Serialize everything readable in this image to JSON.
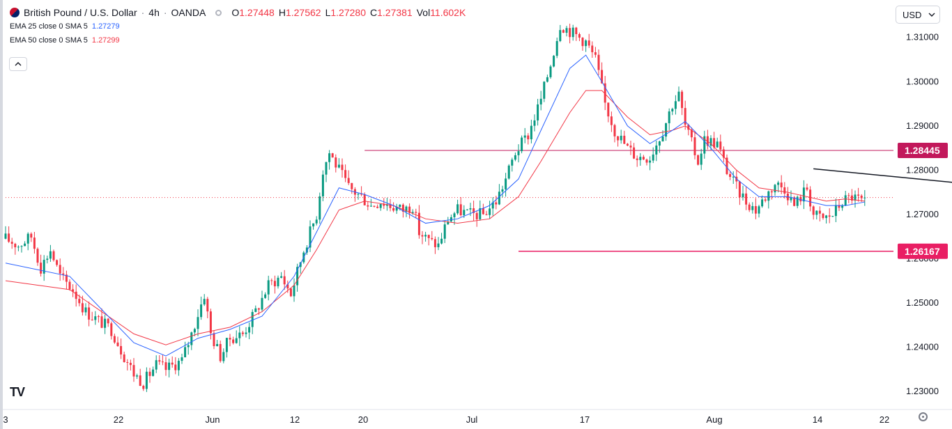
{
  "header": {
    "symbol": "British Pound / U.S. Dollar",
    "interval": "4h",
    "exchange": "OANDA",
    "ohlc": [
      {
        "key": "O",
        "value": "1.27448"
      },
      {
        "key": "H",
        "value": "1.27562"
      },
      {
        "key": "L",
        "value": "1.27280"
      },
      {
        "key": "C",
        "value": "1.27381"
      },
      {
        "key": "Vol",
        "value": "11.602K"
      }
    ],
    "indicators": [
      {
        "label": "EMA 25 close 0 SMA 5",
        "value": "1.27279",
        "color": "#2962ff"
      },
      {
        "label": "EMA 50 close 0 SMA 5",
        "value": "1.27299",
        "color": "#f23645"
      }
    ],
    "collapse_icon": "chevron-up-icon",
    "currency": "USD",
    "currency_icon": "chevron-down-icon",
    "logo": "TV",
    "settings_icon": "gear-icon"
  },
  "chart_data": {
    "type": "candlestick",
    "title": "British Pound / U.S. Dollar · 4h · OANDA",
    "ylim": [
      1.2259,
      1.3172
    ],
    "y_ticks": [
      "1.23000",
      "1.24000",
      "1.25000",
      "1.26000",
      "1.27000",
      "1.28000",
      "1.29000",
      "1.30000",
      "1.31000"
    ],
    "x_ticks": [
      "3",
      "22",
      "Jun",
      "12",
      "20",
      "Jul",
      "17",
      "Aug",
      "14",
      "22"
    ],
    "price_path": [
      [
        0,
        1.2645
      ],
      [
        4,
        1.263
      ],
      [
        8,
        1.265
      ],
      [
        11,
        1.258
      ],
      [
        14,
        1.262
      ],
      [
        17,
        1.256
      ],
      [
        21,
        1.253
      ],
      [
        25,
        1.248
      ],
      [
        29,
        1.246
      ],
      [
        33,
        1.244
      ],
      [
        37,
        1.238
      ],
      [
        40,
        1.234
      ],
      [
        43,
        1.232
      ],
      [
        47,
        1.236
      ],
      [
        50,
        1.235
      ],
      [
        55,
        1.237
      ],
      [
        58,
        1.243
      ],
      [
        62,
        1.252
      ],
      [
        64,
        1.243
      ],
      [
        67,
        1.238
      ],
      [
        70,
        1.242
      ],
      [
        74,
        1.243
      ],
      [
        78,
        1.248
      ],
      [
        82,
        1.254
      ],
      [
        86,
        1.256
      ],
      [
        89,
        1.252
      ],
      [
        93,
        1.262
      ],
      [
        97,
        1.27
      ],
      [
        99,
        1.28
      ],
      [
        101,
        1.284
      ],
      [
        104,
        1.28
      ],
      [
        107,
        1.276
      ],
      [
        111,
        1.274
      ],
      [
        114,
        1.272
      ],
      [
        117,
        1.273
      ],
      [
        120,
        1.272
      ],
      [
        124,
        1.271
      ],
      [
        127,
        1.272
      ],
      [
        129,
        1.266
      ],
      [
        132,
        1.264
      ],
      [
        135,
        1.263
      ],
      [
        138,
        1.269
      ],
      [
        141,
        1.271
      ],
      [
        145,
        1.27
      ],
      [
        149,
        1.27
      ],
      [
        153,
        1.273
      ],
      [
        156,
        1.278
      ],
      [
        159,
        1.284
      ],
      [
        163,
        1.288
      ],
      [
        167,
        1.296
      ],
      [
        170,
        1.304
      ],
      [
        173,
        1.313
      ],
      [
        177,
        1.311
      ],
      [
        181,
        1.309
      ],
      [
        184,
        1.305
      ],
      [
        187,
        1.295
      ],
      [
        190,
        1.289
      ],
      [
        194,
        1.285
      ],
      [
        197,
        1.283
      ],
      [
        201,
        1.283
      ],
      [
        205,
        1.289
      ],
      [
        208,
        1.295
      ],
      [
        210,
        1.297
      ],
      [
        212,
        1.29
      ],
      [
        216,
        1.282
      ],
      [
        218,
        1.287
      ],
      [
        222,
        1.286
      ],
      [
        225,
        1.28
      ],
      [
        228,
        1.276
      ],
      [
        231,
        1.273
      ],
      [
        234,
        1.271
      ],
      [
        237,
        1.274
      ],
      [
        240,
        1.277
      ],
      [
        243,
        1.276
      ],
      [
        246,
        1.272
      ],
      [
        248,
        1.274
      ],
      [
        250,
        1.276
      ],
      [
        252,
        1.27
      ],
      [
        255,
        1.269
      ],
      [
        258,
        1.27
      ],
      [
        261,
        1.273
      ],
      [
        264,
        1.274
      ],
      [
        267,
        1.273
      ],
      [
        268,
        1.2738
      ]
    ],
    "ema_fast": {
      "name": "EMA 25 close 0 SMA 5",
      "values": [
        [
          0,
          1.259
        ],
        [
          20,
          1.256
        ],
        [
          40,
          1.241
        ],
        [
          50,
          1.238
        ],
        [
          60,
          1.242
        ],
        [
          70,
          1.244
        ],
        [
          80,
          1.247
        ],
        [
          90,
          1.256
        ],
        [
          97,
          1.266
        ],
        [
          104,
          1.276
        ],
        [
          112,
          1.2745
        ],
        [
          121,
          1.272
        ],
        [
          131,
          1.268
        ],
        [
          141,
          1.269
        ],
        [
          151,
          1.272
        ],
        [
          160,
          1.278
        ],
        [
          167,
          1.289
        ],
        [
          176,
          1.303
        ],
        [
          181,
          1.306
        ],
        [
          186,
          1.3
        ],
        [
          194,
          1.29
        ],
        [
          201,
          1.286
        ],
        [
          208,
          1.289
        ],
        [
          212,
          1.291
        ],
        [
          220,
          1.285
        ],
        [
          228,
          1.278
        ],
        [
          235,
          1.274
        ],
        [
          244,
          1.274
        ],
        [
          250,
          1.273
        ],
        [
          256,
          1.272
        ],
        [
          262,
          1.272
        ],
        [
          268,
          1.2728
        ]
      ],
      "last": 1.27279,
      "color": "#2962ff"
    },
    "ema_slow": {
      "name": "EMA 50 close 0 SMA 5",
      "values": [
        [
          0,
          1.255
        ],
        [
          20,
          1.253
        ],
        [
          40,
          1.243
        ],
        [
          50,
          1.2405
        ],
        [
          60,
          1.243
        ],
        [
          70,
          1.2445
        ],
        [
          80,
          1.248
        ],
        [
          90,
          1.254
        ],
        [
          97,
          1.262
        ],
        [
          104,
          1.271
        ],
        [
          112,
          1.273
        ],
        [
          121,
          1.272
        ],
        [
          131,
          1.269
        ],
        [
          141,
          1.268
        ],
        [
          151,
          1.269
        ],
        [
          160,
          1.274
        ],
        [
          167,
          1.282
        ],
        [
          176,
          1.293
        ],
        [
          181,
          1.298
        ],
        [
          186,
          1.298
        ],
        [
          194,
          1.292
        ],
        [
          201,
          1.288
        ],
        [
          208,
          1.289
        ],
        [
          212,
          1.29
        ],
        [
          220,
          1.286
        ],
        [
          228,
          1.28
        ],
        [
          235,
          1.276
        ],
        [
          244,
          1.275
        ],
        [
          250,
          1.274
        ],
        [
          256,
          1.273
        ],
        [
          262,
          1.2735
        ],
        [
          268,
          1.273
        ]
      ],
      "last": 1.27299,
      "color": "#f23645"
    },
    "annotations": {
      "resistance": {
        "value": 1.28445,
        "label": "1.28445",
        "from_bar": 112,
        "color": "#c2185b"
      },
      "support": {
        "value": 1.26167,
        "label": "1.26167",
        "from_bar": 160,
        "color": "#e91e63"
      },
      "trendline": {
        "from": [
          252,
          1.2803
        ],
        "to": [
          316,
          1.2758
        ],
        "color": "#131722"
      },
      "last_price": {
        "value": 1.27381,
        "color": "#f23645"
      }
    }
  }
}
